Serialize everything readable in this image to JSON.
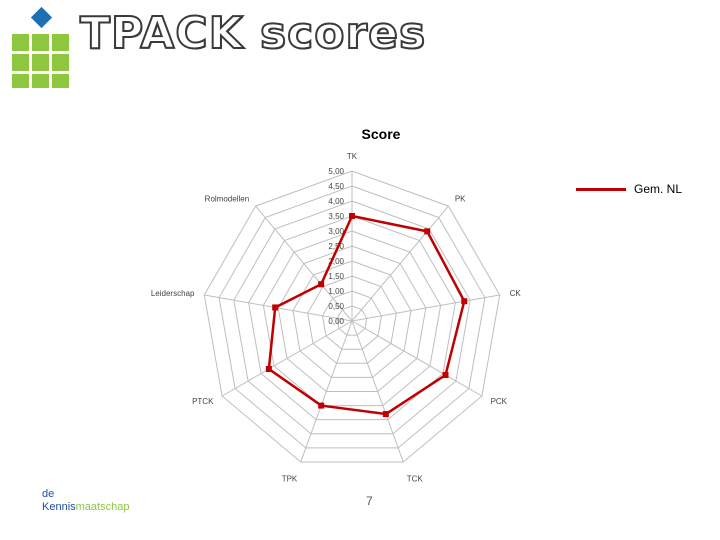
{
  "slide": {
    "title": "TPACK scores",
    "page_number": "7",
    "brand_line1": "de",
    "brand_line2_part1": "Kennis",
    "brand_line2_part2": "maatschap"
  },
  "colors": {
    "series": "#c00000",
    "grid": "#bfbfbf",
    "logo_green": "#8dc63f",
    "logo_blue": "#1f6fb5"
  },
  "chart_data": {
    "type": "radar",
    "title": "Score",
    "axes": [
      "TK",
      "PK",
      "CK",
      "PCK",
      "TCK",
      "TPK",
      "PTCK",
      "Leiderschap",
      "Rolmodellen"
    ],
    "rlim": [
      0,
      5
    ],
    "ticks": [
      "0,00",
      "0,50",
      "1,00",
      "1,50",
      "2,00",
      "2,50",
      "3,00",
      "3,50",
      "4,00",
      "4,50",
      "5,00"
    ],
    "grid": true,
    "legend_position": "right",
    "series": [
      {
        "name": "Gem. NL",
        "values": [
          3.5,
          3.9,
          3.8,
          3.6,
          3.3,
          3.0,
          3.2,
          2.6,
          1.6
        ]
      }
    ]
  }
}
